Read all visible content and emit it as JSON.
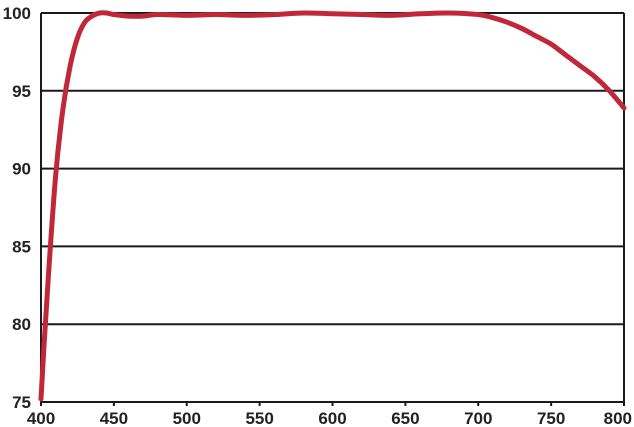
{
  "chart_data": {
    "type": "line",
    "title": "",
    "xlabel": "",
    "ylabel": "",
    "xlim": [
      400,
      800
    ],
    "ylim": [
      75,
      100
    ],
    "x_ticks": [
      400,
      450,
      500,
      550,
      600,
      650,
      700,
      750,
      800
    ],
    "y_ticks": [
      75,
      80,
      85,
      90,
      95,
      100
    ],
    "x_tick_labels": [
      "400",
      "450",
      "500",
      "550",
      "600",
      "650",
      "700",
      "750",
      "800"
    ],
    "y_tick_labels": [
      "75",
      "80",
      "85",
      "90",
      "95",
      "100"
    ],
    "grid": "horizontal",
    "legend": "none",
    "colors": {
      "line": "#c0283a",
      "grid": "#1a1a1a",
      "axis": "#1a1a1a"
    },
    "series": [
      {
        "x": [
          400,
          402,
          405,
          410,
          415,
          420,
          425,
          430,
          435,
          440,
          445,
          450,
          460,
          470,
          480,
          500,
          520,
          540,
          560,
          580,
          600,
          620,
          640,
          660,
          680,
          700,
          710,
          720,
          730,
          740,
          750,
          760,
          770,
          780,
          790,
          800
        ],
        "values": [
          75.2,
          78.5,
          83.0,
          89.5,
          93.8,
          96.6,
          98.4,
          99.4,
          99.8,
          100.0,
          100.0,
          99.9,
          99.8,
          99.8,
          99.9,
          99.85,
          99.9,
          99.85,
          99.9,
          100.0,
          99.95,
          99.9,
          99.85,
          99.95,
          100.0,
          99.9,
          99.7,
          99.4,
          99.0,
          98.5,
          98.0,
          97.3,
          96.6,
          95.9,
          95.0,
          93.9
        ]
      }
    ]
  }
}
